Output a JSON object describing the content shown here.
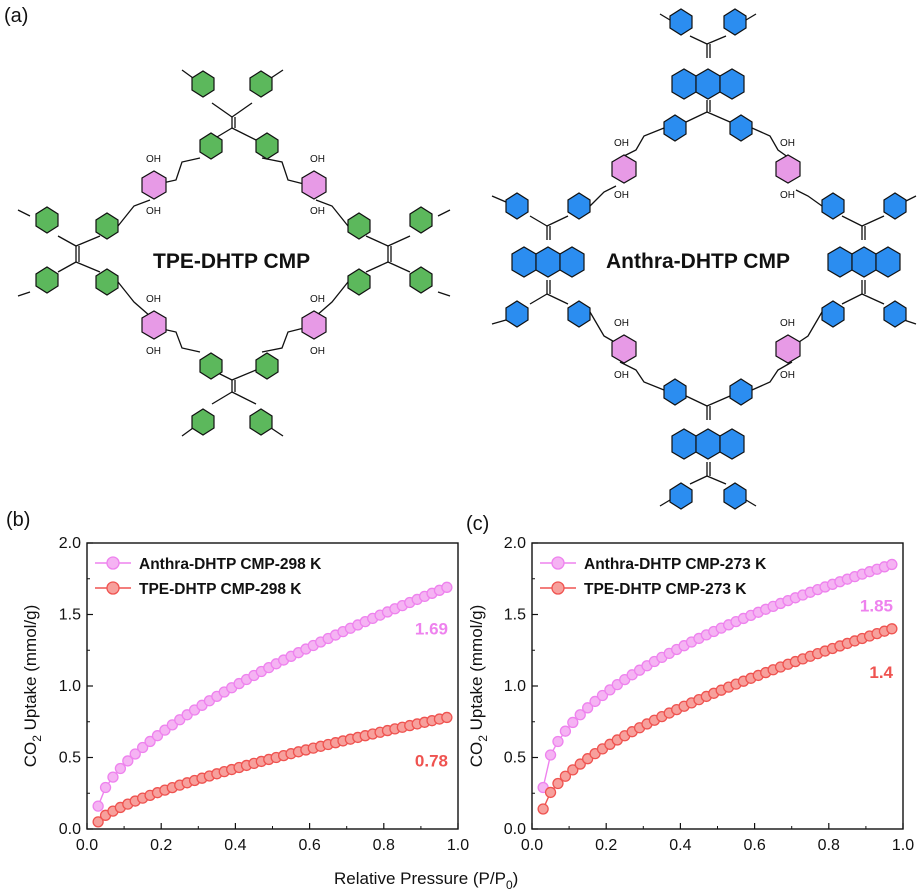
{
  "figure": {
    "panel_a_label": "(a)",
    "panel_b_label": "(b)",
    "panel_c_label": "(c)",
    "structure_left_title": "TPE-DHTP CMP",
    "structure_right_title": "Anthra-DHTP CMP",
    "hydroxyl_label": "OH",
    "shared_xlabel_main": "Relative Pressure (P/P",
    "shared_xlabel_sub": "0",
    "shared_xlabel_end": ")"
  },
  "colors": {
    "anthra": "#ee82ee",
    "anthra_fill": "#f5b3f3",
    "tpe": "#ef5350",
    "tpe_fill": "#f7a09c",
    "ring_green": "#5cb85c",
    "ring_blue": "#2b8df0",
    "ring_pink": "#e79ae6"
  },
  "chart_data": [
    {
      "type": "scatter",
      "panel": "(b)",
      "xlabel": "Relative Pressure (P/P0)",
      "ylabel_main": "CO",
      "ylabel_sub": "2",
      "ylabel_end": " Uptake (mmol/g)",
      "xlim": [
        0.0,
        1.0
      ],
      "ylim": [
        0.0,
        2.0
      ],
      "xticks": [
        "0.0",
        "0.2",
        "0.4",
        "0.6",
        "0.8",
        "1.0"
      ],
      "yticks": [
        "0.0",
        "0.5",
        "1.0",
        "1.5",
        "2.0"
      ],
      "legend_position": "top-left",
      "series": [
        {
          "name": "Anthra-DHTP CMP-298 K",
          "color_key": "anthra",
          "x_start": 0.03,
          "x_end": 0.97,
          "n_points": 48,
          "y_start": 0.16,
          "y_end": 1.69,
          "exponent": 0.64,
          "end_label": "1.69"
        },
        {
          "name": "TPE-DHTP CMP-298 K",
          "color_key": "tpe",
          "x_start": 0.03,
          "x_end": 0.97,
          "n_points": 48,
          "y_start": 0.05,
          "y_end": 0.78,
          "exponent": 0.72,
          "end_label": "0.78"
        }
      ]
    },
    {
      "type": "scatter",
      "panel": "(c)",
      "xlabel": "Relative Pressure (P/P0)",
      "ylabel_main": "CO",
      "ylabel_sub": "2",
      "ylabel_end": " Uptake (mmol/g)",
      "xlim": [
        0.0,
        1.0
      ],
      "ylim": [
        0.0,
        2.0
      ],
      "xticks": [
        "0.0",
        "0.2",
        "0.4",
        "0.6",
        "0.8",
        "1.0"
      ],
      "yticks": [
        "0.0",
        "0.5",
        "1.0",
        "1.5",
        "2.0"
      ],
      "legend_position": "top-left",
      "series": [
        {
          "name": "Anthra-DHTP CMP-273 K",
          "color_key": "anthra",
          "x_start": 0.03,
          "x_end": 0.97,
          "n_points": 48,
          "y_start": 0.29,
          "y_end": 1.85,
          "exponent": 0.5,
          "end_label": "1.85"
        },
        {
          "name": "TPE-DHTP CMP-273 K",
          "color_key": "tpe",
          "x_start": 0.03,
          "x_end": 0.97,
          "n_points": 48,
          "y_start": 0.14,
          "y_end": 1.4,
          "exponent": 0.62,
          "end_label": "1.4"
        }
      ]
    }
  ]
}
